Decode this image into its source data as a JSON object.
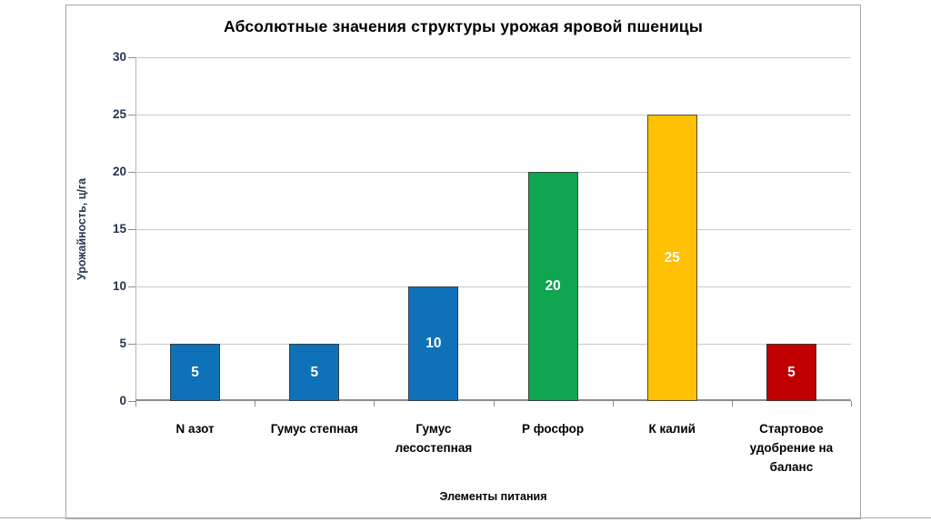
{
  "chart_data": {
    "type": "bar",
    "title": "Абсолютные значения структуры урожая яровой пшеницы",
    "xlabel": "Элементы питания",
    "ylabel": "Урожайность, ц/га",
    "ylim": [
      0,
      30
    ],
    "yticks": [
      0,
      5,
      10,
      15,
      20,
      25,
      30
    ],
    "grid": true,
    "legend": false,
    "categories": [
      "N азот",
      "Гумус степная",
      "Гумус лесостепная",
      "Р фосфор",
      "К калий",
      "Стартовое удобрение на баланс"
    ],
    "category_label_lines": [
      [
        "N азот"
      ],
      [
        "Гумус степная"
      ],
      [
        "Гумус",
        "лесостепная"
      ],
      [
        "Р фосфор"
      ],
      [
        "К калий"
      ],
      [
        "Стартовое",
        "удобрение на",
        "баланс"
      ]
    ],
    "values": [
      5,
      5,
      10,
      20,
      25,
      5
    ],
    "bar_colors": [
      "#0F72B8",
      "#0F72B8",
      "#0F72B8",
      "#0EA64F",
      "#FFC103",
      "#C00000"
    ],
    "data_label_color": "#FFFFFF",
    "data_labels": [
      5,
      5,
      10,
      20,
      25,
      5
    ]
  },
  "colors": {
    "frame_border": "#A6A6A6",
    "gridline": "#C9C9C9",
    "axis_line": "#8C8C8C",
    "tick_label": "#24364F",
    "text": "#000000",
    "background": "#FFFFFF"
  }
}
